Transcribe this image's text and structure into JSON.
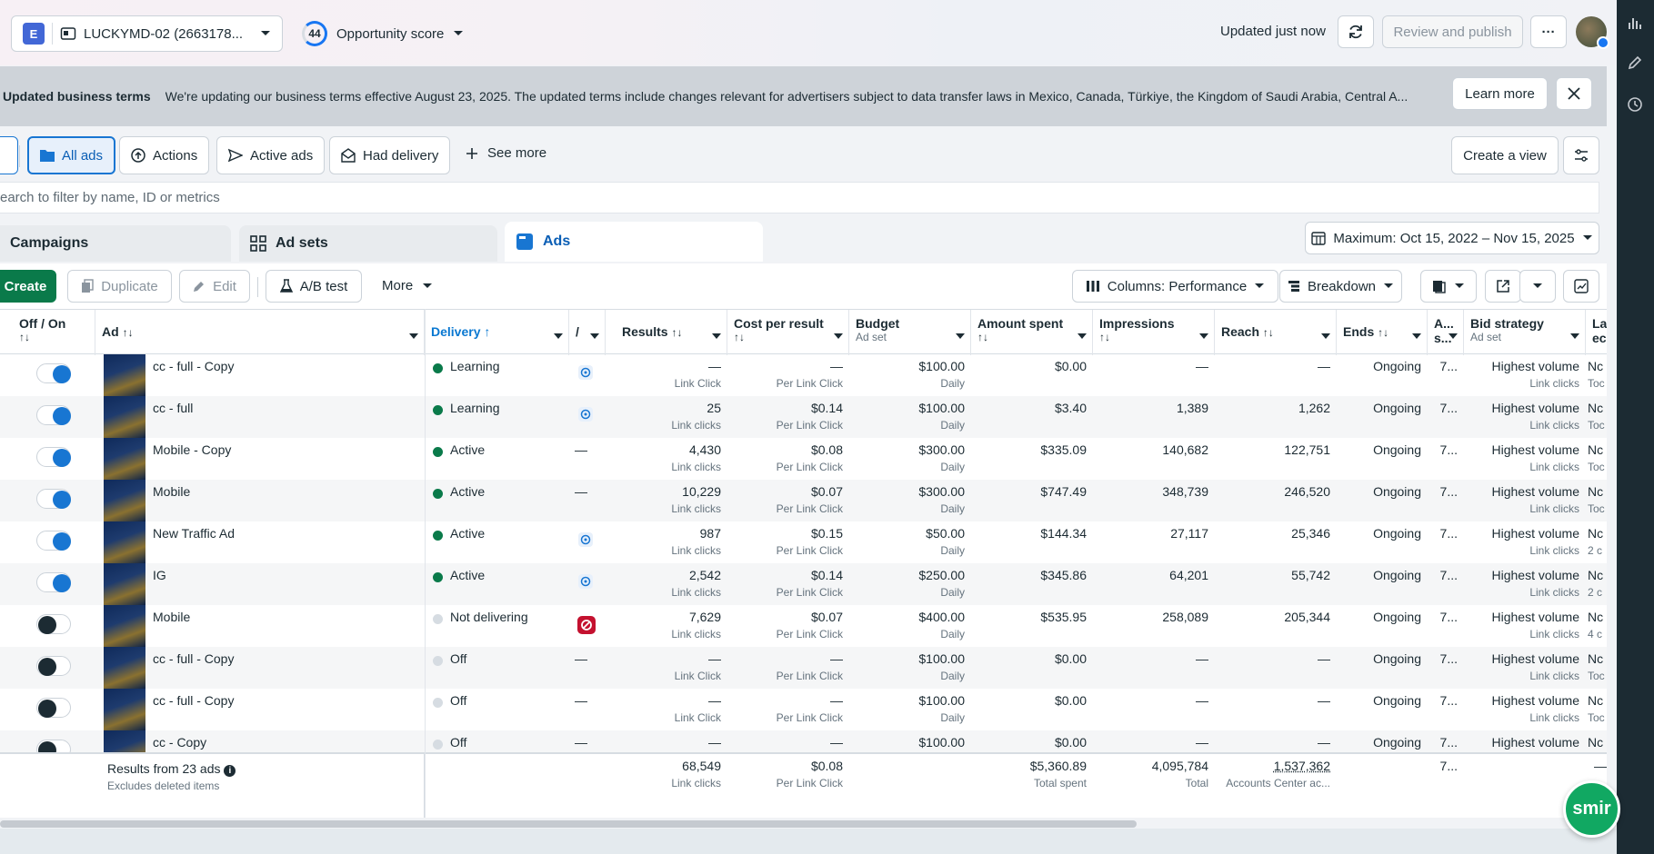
{
  "account": {
    "badge": "E",
    "name": "LUCKYMD-02 (2663178..."
  },
  "opportunity": {
    "score": "44",
    "label": "Opportunity score"
  },
  "header": {
    "updated": "Updated just now",
    "review_publish": "Review and publish",
    "more_label": "···"
  },
  "banner": {
    "title": "Updated business terms",
    "message": "We're updating our business terms effective August 23, 2025. The updated terms include changes relevant for advertisers subject to data transfer laws in Mexico, Canada, Türkiye, the Kingdom of Saudi Arabia, Central A...",
    "learn_more": "Learn more"
  },
  "filters": {
    "all_ads": "All ads",
    "actions": "Actions",
    "active_ads": "Active ads",
    "had_delivery": "Had delivery",
    "see_more": "See more",
    "create_view": "Create a view"
  },
  "search": {
    "placeholder": "earch to filter by name, ID or metrics"
  },
  "tabs": {
    "campaigns": "Campaigns",
    "ad_sets": "Ad sets",
    "ads": "Ads"
  },
  "date_range": "Maximum: Oct 15, 2022 – Nov 15, 2025",
  "toolbar": {
    "create": "Create",
    "duplicate": "Duplicate",
    "edit": "Edit",
    "ab_test": "A/B test",
    "more": "More",
    "columns": "Columns: Performance",
    "breakdown": "Breakdown"
  },
  "columns": {
    "off_on": "Off / On",
    "ad": "Ad",
    "delivery": "Delivery",
    "a": "/",
    "results": "Results",
    "cpr": "Cost per result",
    "budget": "Budget",
    "budget_sub": "Ad set",
    "amount_spent": "Amount spent",
    "impressions": "Impressions",
    "reach": "Reach",
    "ends": "Ends",
    "as": "A...",
    "as2": "s...",
    "bid": "Bid strategy",
    "bid_sub": "Ad set",
    "last": "La",
    "last2": "ec"
  },
  "rows": [
    {
      "on": true,
      "name": "cc - full - Copy",
      "delivery": "Learning",
      "dcolor": "#0a7a4a",
      "ind": "icon",
      "results": "—",
      "results_sub": "Link Click",
      "cpr": "—",
      "cpr_sub": "Per Link Click",
      "budget": "$100.00",
      "budget_sub": "Daily",
      "spent": "$0.00",
      "impr": "—",
      "reach": "—",
      "ends": "Ongoing",
      "as": "7...",
      "bid": "Highest volume",
      "bid_sub": "Link clicks",
      "last": "Nc",
      "last2": "Toc"
    },
    {
      "on": true,
      "name": "cc - full",
      "delivery": "Learning",
      "dcolor": "#0a7a4a",
      "ind": "icon",
      "results": "25",
      "results_sub": "Link clicks",
      "cpr": "$0.14",
      "cpr_sub": "Per Link Click",
      "budget": "$100.00",
      "budget_sub": "Daily",
      "spent": "$3.40",
      "impr": "1,389",
      "reach": "1,262",
      "ends": "Ongoing",
      "as": "7...",
      "bid": "Highest volume",
      "bid_sub": "Link clicks",
      "last": "Nc",
      "last2": "Toc"
    },
    {
      "on": true,
      "name": "Mobile - Copy",
      "delivery": "Active",
      "dcolor": "#0a7a4a",
      "ind": "dash",
      "results": "4,430",
      "results_sub": "Link clicks",
      "cpr": "$0.08",
      "cpr_sub": "Per Link Click",
      "budget": "$300.00",
      "budget_sub": "Daily",
      "spent": "$335.09",
      "impr": "140,682",
      "reach": "122,751",
      "ends": "Ongoing",
      "as": "7...",
      "bid": "Highest volume",
      "bid_sub": "Link clicks",
      "last": "Nc",
      "last2": "Toc"
    },
    {
      "on": true,
      "name": "Mobile",
      "delivery": "Active",
      "dcolor": "#0a7a4a",
      "ind": "dash",
      "results": "10,229",
      "results_sub": "Link clicks",
      "cpr": "$0.07",
      "cpr_sub": "Per Link Click",
      "budget": "$300.00",
      "budget_sub": "Daily",
      "spent": "$747.49",
      "impr": "348,739",
      "reach": "246,520",
      "ends": "Ongoing",
      "as": "7...",
      "bid": "Highest volume",
      "bid_sub": "Link clicks",
      "last": "Nc",
      "last2": "Toc"
    },
    {
      "on": true,
      "name": "New Traffic Ad",
      "delivery": "Active",
      "dcolor": "#0a7a4a",
      "ind": "icon",
      "results": "987",
      "results_sub": "Link clicks",
      "cpr": "$0.15",
      "cpr_sub": "Per Link Click",
      "budget": "$50.00",
      "budget_sub": "Daily",
      "spent": "$144.34",
      "impr": "27,117",
      "reach": "25,346",
      "ends": "Ongoing",
      "as": "7...",
      "bid": "Highest volume",
      "bid_sub": "Link clicks",
      "last": "Nc",
      "last2": "2 c"
    },
    {
      "on": true,
      "name": "IG",
      "delivery": "Active",
      "dcolor": "#0a7a4a",
      "ind": "icon",
      "results": "2,542",
      "results_sub": "Link clicks",
      "cpr": "$0.14",
      "cpr_sub": "Per Link Click",
      "budget": "$250.00",
      "budget_sub": "Daily",
      "spent": "$345.86",
      "impr": "64,201",
      "reach": "55,742",
      "ends": "Ongoing",
      "as": "7...",
      "bid": "Highest volume",
      "bid_sub": "Link clicks",
      "last": "Nc",
      "last2": "2 c"
    },
    {
      "on": false,
      "name": "Mobile",
      "delivery": "Not delivering",
      "dcolor": "#d6dce2",
      "ind": "warn",
      "results": "7,629",
      "results_sub": "Link clicks",
      "cpr": "$0.07",
      "cpr_sub": "Per Link Click",
      "budget": "$400.00",
      "budget_sub": "Daily",
      "spent": "$535.95",
      "impr": "258,089",
      "reach": "205,344",
      "ends": "Ongoing",
      "as": "7...",
      "bid": "Highest volume",
      "bid_sub": "Link clicks",
      "last": "Nc",
      "last2": "4 c"
    },
    {
      "on": false,
      "name": "cc - full - Copy",
      "delivery": "Off",
      "dcolor": "#d6dce2",
      "ind": "dash",
      "results": "—",
      "results_sub": "Link Click",
      "cpr": "—",
      "cpr_sub": "Per Link Click",
      "budget": "$100.00",
      "budget_sub": "Daily",
      "spent": "$0.00",
      "impr": "—",
      "reach": "—",
      "ends": "Ongoing",
      "as": "7...",
      "bid": "Highest volume",
      "bid_sub": "Link clicks",
      "last": "Nc",
      "last2": "Toc"
    },
    {
      "on": false,
      "name": "cc - full - Copy",
      "delivery": "Off",
      "dcolor": "#d6dce2",
      "ind": "dash",
      "results": "—",
      "results_sub": "Link Click",
      "cpr": "—",
      "cpr_sub": "Per Link Click",
      "budget": "$100.00",
      "budget_sub": "Daily",
      "spent": "$0.00",
      "impr": "—",
      "reach": "—",
      "ends": "Ongoing",
      "as": "7...",
      "bid": "Highest volume",
      "bid_sub": "Link clicks",
      "last": "Nc",
      "last2": "Toc"
    },
    {
      "on": false,
      "name": "cc - Copy",
      "delivery": "Off",
      "dcolor": "#d6dce2",
      "ind": "dash",
      "results": "—",
      "results_sub": "",
      "cpr": "—",
      "cpr_sub": "",
      "budget": "$100.00",
      "budget_sub": "",
      "spent": "$0.00",
      "impr": "—",
      "reach": "—",
      "ends": "Ongoing",
      "as": "7...",
      "bid": "Highest volume",
      "bid_sub": "",
      "last": "Nc",
      "last2": ""
    }
  ],
  "footer": {
    "label": "Results from 23 ads",
    "sub": "Excludes deleted items",
    "results": "68,549",
    "results_sub": "Link clicks",
    "cpr": "$0.08",
    "cpr_sub": "Per Link Click",
    "spent": "$5,360.89",
    "spent_sub": "Total spent",
    "impr": "4,095,784",
    "impr_sub": "Total",
    "reach": "1,537,362",
    "reach_sub": "Accounts Center ac...",
    "as": "7...",
    "last": "—"
  },
  "chat": {
    "label": "smir"
  }
}
